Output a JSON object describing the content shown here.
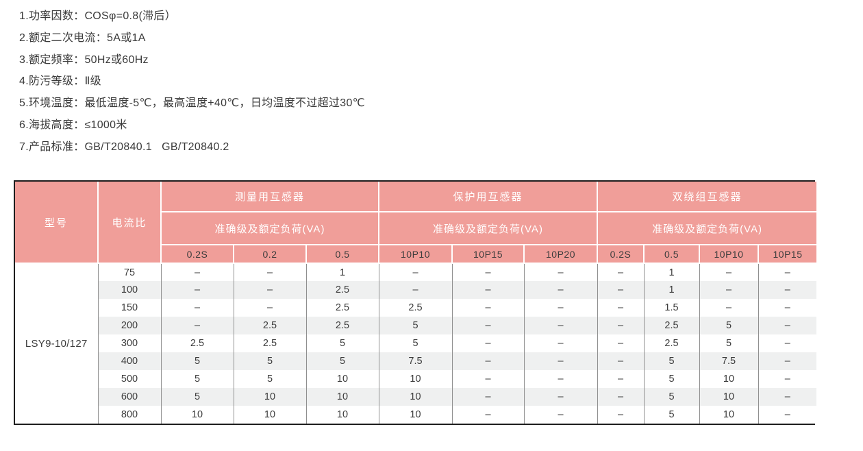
{
  "specs": {
    "items": [
      "1.功率因数：COSφ=0.8(滞后）",
      "2.额定二次电流：5A或1A",
      "3.额定频率：50Hz或60Hz",
      "4.防污等级：Ⅱ级",
      "5.环境温度：最低温度-5℃，最高温度+40℃，日均温度不过超过30℃",
      "6.海拔高度：≤1000米",
      "7.产品标准：GB/T20840.1   GB/T20840.2"
    ]
  },
  "table": {
    "header": {
      "model": "型号",
      "ratio": "电流比",
      "groups": [
        {
          "title": "测量用互感器",
          "subtitle": "准确级及额定负荷(VA)",
          "cols": [
            "0.2S",
            "0.2",
            "0.5"
          ]
        },
        {
          "title": "保护用互感器",
          "subtitle": "准确级及额定负荷(VA)",
          "cols": [
            "10P10",
            "10P15",
            "10P20"
          ]
        },
        {
          "title": "双绕组互感器",
          "subtitle": "准确级及额定负荷(VA)",
          "cols": [
            "0.2S",
            "0.5",
            "10P10",
            "10P15"
          ]
        }
      ]
    },
    "model": "LSY9-10/127",
    "rows": [
      {
        "ratio": "75",
        "values": [
          "–",
          "–",
          "1",
          "–",
          "–",
          "–",
          "–",
          "1",
          "–",
          "–"
        ]
      },
      {
        "ratio": "100",
        "values": [
          "–",
          "–",
          "2.5",
          "–",
          "–",
          "–",
          "–",
          "1",
          "–",
          "–"
        ]
      },
      {
        "ratio": "150",
        "values": [
          "–",
          "–",
          "2.5",
          "2.5",
          "–",
          "–",
          "–",
          "1.5",
          "–",
          "–"
        ]
      },
      {
        "ratio": "200",
        "values": [
          "–",
          "2.5",
          "2.5",
          "5",
          "–",
          "–",
          "–",
          "2.5",
          "5",
          "–"
        ]
      },
      {
        "ratio": "300",
        "values": [
          "2.5",
          "2.5",
          "5",
          "5",
          "–",
          "–",
          "–",
          "2.5",
          "5",
          "–"
        ]
      },
      {
        "ratio": "400",
        "values": [
          "5",
          "5",
          "5",
          "7.5",
          "–",
          "–",
          "–",
          "5",
          "7.5",
          "–"
        ]
      },
      {
        "ratio": "500",
        "values": [
          "5",
          "5",
          "10",
          "10",
          "–",
          "–",
          "–",
          "5",
          "10",
          "–"
        ]
      },
      {
        "ratio": "600",
        "values": [
          "5",
          "10",
          "10",
          "10",
          "–",
          "–",
          "–",
          "5",
          "10",
          "–"
        ]
      },
      {
        "ratio": "800",
        "values": [
          "10",
          "10",
          "10",
          "10",
          "–",
          "–",
          "–",
          "5",
          "10",
          "–"
        ]
      }
    ],
    "colors": {
      "header_bg": "#f09e99",
      "header_text": "#ffffff",
      "subcolumn_text": "#3c3c3c",
      "body_text": "#3b3b3b",
      "stripe_bg": "#eff0f0",
      "grid_line": "#8f8f8f",
      "outer_border": "#1d1d1d"
    }
  }
}
